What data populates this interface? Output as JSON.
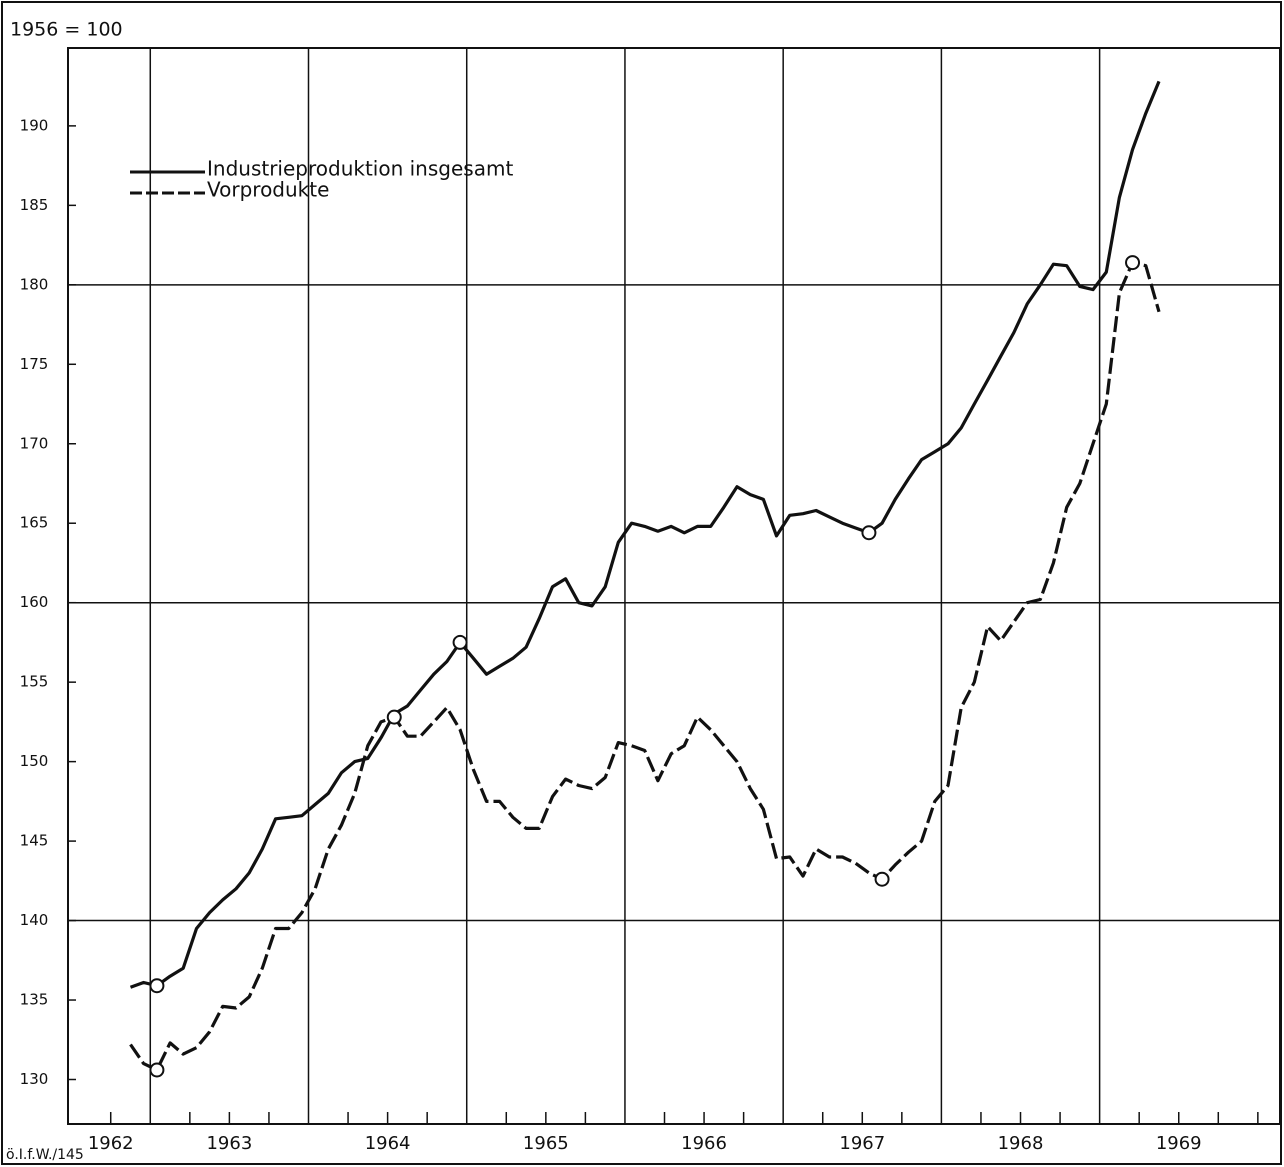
{
  "chart_data": {
    "type": "line",
    "y_axis_label": "1956 = 100",
    "source": "ö.I.f.W./145",
    "legend": "top-left",
    "xlim": [
      1962.48,
      1970.14
    ],
    "ylim": [
      127.2,
      194.9
    ],
    "yticks": [
      130,
      135,
      140,
      145,
      150,
      155,
      160,
      165,
      170,
      175,
      180,
      185,
      190
    ],
    "ygrid": [
      140,
      160,
      180
    ],
    "xgrid": [
      1963,
      1964,
      1965,
      1966,
      1967,
      1968,
      1969
    ],
    "xticks": [
      {
        "value": 1962.75,
        "label": "1962"
      },
      {
        "value": 1963.5,
        "label": "1963"
      },
      {
        "value": 1964.5,
        "label": "1964"
      },
      {
        "value": 1965.5,
        "label": "1965"
      },
      {
        "value": 1966.5,
        "label": "1966"
      },
      {
        "value": 1967.5,
        "label": "1967"
      },
      {
        "value": 1968.5,
        "label": "1968"
      },
      {
        "value": 1969.5,
        "label": "1969"
      }
    ],
    "xminorticks": [
      1962.75,
      1963.25,
      1963.5,
      1963.75,
      1964.25,
      1964.5,
      1964.75,
      1965.25,
      1965.5,
      1965.75,
      1966.25,
      1966.5,
      1966.75,
      1967.25,
      1967.5,
      1967.75,
      1968.25,
      1968.5,
      1968.75,
      1969.25,
      1969.5,
      1969.75,
      1970
    ],
    "x": [
      1962.875,
      1962.958,
      1963.042,
      1963.125,
      1963.208,
      1963.292,
      1963.375,
      1963.458,
      1963.542,
      1963.625,
      1963.708,
      1963.792,
      1963.875,
      1963.958,
      1964.042,
      1964.125,
      1964.208,
      1964.292,
      1964.375,
      1964.458,
      1964.542,
      1964.625,
      1964.708,
      1964.792,
      1964.875,
      1964.958,
      1965.042,
      1965.125,
      1965.208,
      1965.292,
      1965.375,
      1965.458,
      1965.542,
      1965.625,
      1965.708,
      1965.792,
      1965.875,
      1965.958,
      1966.042,
      1966.125,
      1966.208,
      1966.292,
      1966.375,
      1966.458,
      1966.542,
      1966.625,
      1966.708,
      1966.792,
      1966.875,
      1966.958,
      1967.042,
      1967.125,
      1967.208,
      1967.292,
      1967.375,
      1967.458,
      1967.542,
      1967.625,
      1967.708,
      1967.792,
      1967.875,
      1967.958,
      1968.042,
      1968.125,
      1968.208,
      1968.292,
      1968.375,
      1968.458,
      1968.542,
      1968.625,
      1968.708,
      1968.792,
      1968.875,
      1968.958,
      1969.042,
      1969.125,
      1969.208,
      1969.292,
      1969.375
    ],
    "series": [
      {
        "name": "Industrieproduktion insgesamt",
        "color": "#111111",
        "dash": false,
        "marker_indices": [
          2,
          25,
          56
        ],
        "values": [
          135.8,
          136.1,
          135.9,
          136.5,
          137.0,
          139.5,
          140.5,
          141.3,
          142.0,
          143.0,
          144.5,
          146.4,
          146.5,
          146.6,
          147.3,
          148.0,
          149.3,
          150.0,
          150.2,
          151.5,
          153.0,
          153.5,
          154.5,
          155.5,
          156.3,
          157.5,
          156.5,
          155.5,
          156.0,
          156.5,
          157.2,
          159.0,
          161.0,
          161.5,
          160.0,
          159.8,
          161.0,
          163.8,
          165.0,
          164.8,
          164.5,
          164.8,
          164.4,
          164.8,
          164.8,
          166.0,
          167.3,
          166.8,
          166.5,
          164.2,
          165.5,
          165.6,
          165.8,
          165.4,
          165.0,
          164.7,
          164.4,
          165.0,
          166.5,
          167.8,
          169.0,
          169.5,
          170.0,
          171.0,
          172.5,
          174.0,
          175.5,
          177.0,
          178.8,
          180.0,
          181.3,
          181.2,
          179.9,
          179.7,
          180.8,
          185.5,
          188.5,
          190.8,
          192.8
        ]
      },
      {
        "name": "Vorprodukte",
        "color": "#111111",
        "dash": true,
        "marker_indices": [
          2,
          20,
          57,
          76
        ],
        "values": [
          132.2,
          131.0,
          130.6,
          132.3,
          131.6,
          132.0,
          133.0,
          134.6,
          134.5,
          135.2,
          137.0,
          139.5,
          139.5,
          140.5,
          142.0,
          144.5,
          146.0,
          148.0,
          151.0,
          152.5,
          152.8,
          151.6,
          151.6,
          152.5,
          153.4,
          152.0,
          149.5,
          147.5,
          147.5,
          146.5,
          145.8,
          145.8,
          147.8,
          148.9,
          148.5,
          148.3,
          149.0,
          151.2,
          151.0,
          150.7,
          148.8,
          150.5,
          151.0,
          152.8,
          152.0,
          151.0,
          150.0,
          148.3,
          147.0,
          143.9,
          144.0,
          142.8,
          144.5,
          144.0,
          144.0,
          143.6,
          143.0,
          142.6,
          143.5,
          144.3,
          145.0,
          147.5,
          148.5,
          153.4,
          155.0,
          158.5,
          157.6,
          158.8,
          160.0,
          160.2,
          162.5,
          166.0,
          167.5,
          170.0,
          172.5,
          179.5,
          181.4,
          181.2,
          178.3
        ]
      }
    ]
  }
}
